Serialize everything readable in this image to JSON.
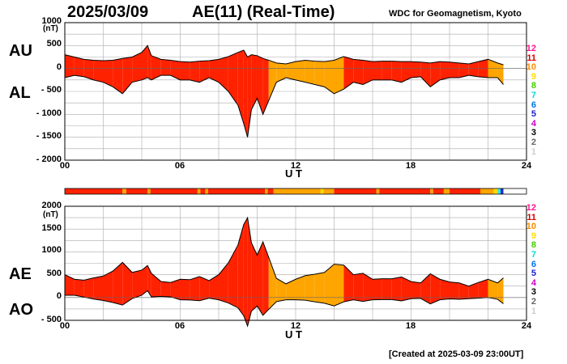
{
  "header": {
    "date": "2025/03/09",
    "title": "AE(11) (Real-Time)",
    "source": "WDC for Geomagnetism, Kyoto"
  },
  "footer": {
    "created": "[Created at 2025-03-09 23:00UT]"
  },
  "colors": {
    "fill_red": "#ff2200",
    "fill_orange": "#ffa500",
    "fill_yellow": "#ffdd00",
    "fill_cyan": "#33e8e8",
    "fill_blue": "#1e2fc0",
    "grid": "#aaaaaa",
    "outline": "#000000"
  },
  "scale_colors": [
    {
      "label": "12",
      "color": "#ff1493"
    },
    {
      "label": "11",
      "color": "#dd0000"
    },
    {
      "label": "10",
      "color": "#ff8c00"
    },
    {
      "label": "9",
      "color": "#ffdd00"
    },
    {
      "label": "8",
      "color": "#44cc00"
    },
    {
      "label": "7",
      "color": "#00dddd"
    },
    {
      "label": "6",
      "color": "#0077ee"
    },
    {
      "label": "5",
      "color": "#2222cc"
    },
    {
      "label": "4",
      "color": "#cc00cc"
    },
    {
      "label": "3",
      "color": "#000000"
    },
    {
      "label": "2",
      "color": "#666666"
    },
    {
      "label": "1",
      "color": "#cccccc"
    }
  ],
  "chart_data": [
    {
      "type": "area",
      "id": "au-al",
      "series_labels": [
        "AU",
        "AL"
      ],
      "ylabel": "(nT)",
      "xlabel": "U T",
      "ylim": [
        -2000,
        1000
      ],
      "yticks": [
        "1000",
        "500",
        "0",
        "- 500",
        "- 1000",
        "- 1500",
        "- 2000"
      ],
      "xlim": [
        0,
        24
      ],
      "xticks": [
        "00",
        "06",
        "12",
        "18",
        "24"
      ],
      "grid": true,
      "ut_hours": [
        0,
        0.5,
        1,
        1.5,
        2,
        2.5,
        3,
        3.5,
        4,
        4.3,
        4.5,
        5,
        5.5,
        6,
        6.5,
        7,
        7.5,
        8,
        8.5,
        9,
        9.3,
        9.5,
        9.7,
        10,
        10.3,
        10.6,
        11,
        11.5,
        12,
        12.5,
        13,
        13.5,
        14,
        14.5,
        15,
        15.5,
        16,
        16.5,
        17,
        17.5,
        18,
        18.5,
        19,
        19.5,
        20,
        20.5,
        21,
        21.5,
        22,
        22.5,
        22.8
      ],
      "au": [
        300,
        250,
        200,
        180,
        170,
        180,
        220,
        250,
        350,
        500,
        280,
        200,
        180,
        150,
        140,
        160,
        170,
        200,
        260,
        350,
        400,
        250,
        300,
        280,
        220,
        180,
        120,
        100,
        150,
        180,
        160,
        150,
        180,
        260,
        200,
        180,
        150,
        160,
        160,
        150,
        150,
        140,
        120,
        150,
        140,
        120,
        100,
        150,
        200,
        120,
        80
      ],
      "al": [
        -200,
        -150,
        -180,
        -250,
        -300,
        -400,
        -550,
        -300,
        -250,
        -200,
        -250,
        -150,
        -150,
        -250,
        -250,
        -300,
        -200,
        -300,
        -500,
        -800,
        -1200,
        -1500,
        -900,
        -650,
        -1000,
        -700,
        -300,
        -200,
        -250,
        -300,
        -350,
        -400,
        -550,
        -450,
        -300,
        -350,
        -250,
        -250,
        -250,
        -300,
        -200,
        -180,
        -400,
        -250,
        -200,
        -200,
        -150,
        -180,
        -200,
        -200,
        -350
      ],
      "activity_index": [
        11,
        11,
        11,
        11,
        11,
        11,
        11,
        11,
        11,
        11,
        11,
        11,
        11,
        11,
        11,
        11,
        11,
        11,
        11,
        11,
        11,
        11,
        11,
        11,
        11,
        10,
        10,
        10,
        10,
        10,
        10,
        10,
        10,
        11,
        11,
        11,
        11,
        11,
        11,
        11,
        11,
        11,
        11,
        11,
        11,
        11,
        11,
        11,
        10,
        10,
        7
      ]
    },
    {
      "type": "area",
      "id": "ae-ao",
      "series_labels": [
        "AE",
        "AO"
      ],
      "ylabel": "(nT)",
      "xlabel": "U T",
      "ylim": [
        -500,
        2000
      ],
      "yticks": [
        "2000",
        "1500",
        "1000",
        "500",
        "0",
        "- 500"
      ],
      "xlim": [
        0,
        24
      ],
      "xticks": [
        "00",
        "06",
        "12",
        "18",
        "24"
      ],
      "grid": true,
      "ut_hours": [
        0,
        0.5,
        1,
        1.5,
        2,
        2.5,
        3,
        3.5,
        4,
        4.3,
        4.5,
        5,
        5.5,
        6,
        6.5,
        7,
        7.5,
        8,
        8.5,
        9,
        9.3,
        9.5,
        9.7,
        10,
        10.3,
        10.6,
        11,
        11.5,
        12,
        12.5,
        13,
        13.5,
        14,
        14.5,
        15,
        15.5,
        16,
        16.5,
        17,
        17.5,
        18,
        18.5,
        19,
        19.5,
        20,
        20.5,
        21,
        21.5,
        22,
        22.5,
        22.8
      ],
      "ae": [
        500,
        400,
        380,
        430,
        470,
        580,
        770,
        550,
        600,
        700,
        530,
        350,
        330,
        400,
        390,
        460,
        370,
        500,
        760,
        1150,
        1600,
        1750,
        1200,
        930,
        1220,
        880,
        420,
        300,
        400,
        480,
        510,
        550,
        730,
        710,
        500,
        530,
        400,
        410,
        410,
        450,
        350,
        320,
        520,
        400,
        340,
        320,
        250,
        330,
        400,
        320,
        430
      ],
      "ao": [
        50,
        50,
        10,
        -35,
        -65,
        -110,
        -165,
        -25,
        50,
        150,
        15,
        25,
        15,
        -50,
        -55,
        -70,
        -15,
        -50,
        -120,
        -225,
        -400,
        -625,
        -300,
        -185,
        -390,
        -260,
        -90,
        -50,
        -50,
        -60,
        -95,
        -125,
        -185,
        -95,
        -50,
        -85,
        -50,
        -45,
        -45,
        -75,
        -25,
        -20,
        -140,
        -50,
        -30,
        -40,
        -25,
        -15,
        0,
        -40,
        -135
      ],
      "activity_index": [
        11,
        11,
        11,
        11,
        11,
        11,
        11,
        11,
        11,
        11,
        11,
        11,
        11,
        11,
        11,
        11,
        11,
        11,
        11,
        11,
        11,
        11,
        11,
        11,
        11,
        10,
        10,
        10,
        10,
        10,
        10,
        10,
        10,
        11,
        11,
        11,
        11,
        11,
        11,
        11,
        11,
        11,
        11,
        11,
        11,
        11,
        11,
        11,
        10,
        10,
        7
      ]
    }
  ],
  "activity_bar": {
    "segments": [
      {
        "from": 0,
        "to": 3.0,
        "level": "red"
      },
      {
        "from": 3.0,
        "to": 3.2,
        "level": "orange"
      },
      {
        "from": 3.2,
        "to": 4.3,
        "level": "red"
      },
      {
        "from": 4.3,
        "to": 4.45,
        "level": "orange"
      },
      {
        "from": 4.45,
        "to": 6.9,
        "level": "red"
      },
      {
        "from": 6.9,
        "to": 7.05,
        "level": "orange"
      },
      {
        "from": 7.05,
        "to": 7.3,
        "level": "red"
      },
      {
        "from": 7.3,
        "to": 7.45,
        "level": "orange"
      },
      {
        "from": 7.45,
        "to": 10.4,
        "level": "red"
      },
      {
        "from": 10.4,
        "to": 10.55,
        "level": "orange"
      },
      {
        "from": 10.55,
        "to": 10.85,
        "level": "red"
      },
      {
        "from": 10.85,
        "to": 13.3,
        "level": "orange"
      },
      {
        "from": 13.3,
        "to": 13.45,
        "level": "yellow"
      },
      {
        "from": 13.45,
        "to": 14.0,
        "level": "orange"
      },
      {
        "from": 14.0,
        "to": 16.2,
        "level": "red"
      },
      {
        "from": 16.2,
        "to": 16.35,
        "level": "orange"
      },
      {
        "from": 16.35,
        "to": 19.0,
        "level": "red"
      },
      {
        "from": 19.0,
        "to": 19.15,
        "level": "orange"
      },
      {
        "from": 19.15,
        "to": 19.7,
        "level": "red"
      },
      {
        "from": 19.7,
        "to": 20.0,
        "level": "orange"
      },
      {
        "from": 20.0,
        "to": 21.6,
        "level": "red"
      },
      {
        "from": 21.6,
        "to": 22.3,
        "level": "orange"
      },
      {
        "from": 22.3,
        "to": 22.5,
        "level": "yellow"
      },
      {
        "from": 22.5,
        "to": 22.65,
        "level": "cyan"
      },
      {
        "from": 22.65,
        "to": 22.8,
        "level": "blue"
      }
    ]
  }
}
